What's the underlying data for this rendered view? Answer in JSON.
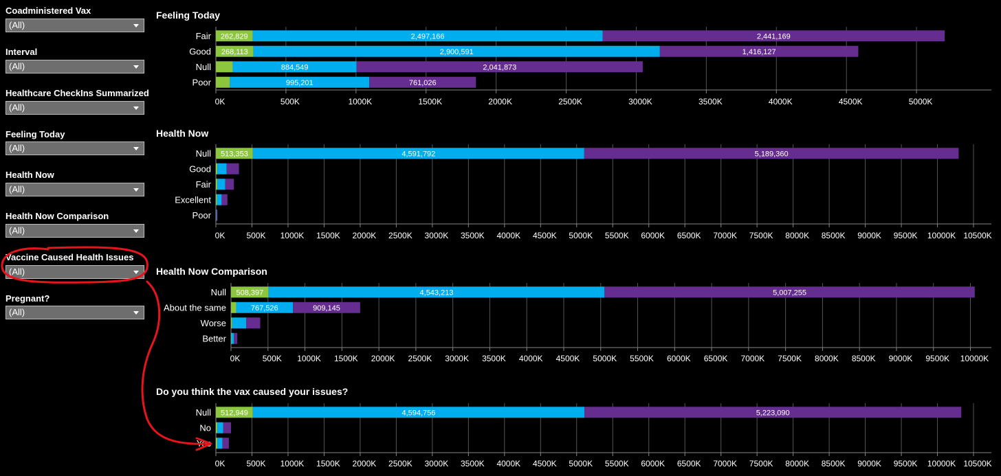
{
  "filters": [
    {
      "label": "Coadministered Vax",
      "value": "(All)"
    },
    {
      "label": "Interval",
      "value": "(All)"
    },
    {
      "label": "Healthcare CheckIns Summarized",
      "value": "(All)"
    },
    {
      "label": "Feeling Today",
      "value": "(All)"
    },
    {
      "label": "Health Now",
      "value": "(All)"
    },
    {
      "label": "Health Now Comparison",
      "value": "(All)"
    },
    {
      "label": "Vaccine Caused Health Issues",
      "value": "(All)"
    },
    {
      "label": "Pregnant?",
      "value": "(All)"
    }
  ],
  "colors": {
    "segment1": "#8cc63f",
    "segment2": "#00aeef",
    "segment3": "#662d91",
    "grid": "#555555",
    "annotation": "#e8141b"
  },
  "chart_data": [
    {
      "type": "bar",
      "stacked": true,
      "orientation": "horizontal",
      "title": "Feeling Today",
      "categories": [
        "Fair",
        "Good",
        "Null",
        "Poor"
      ],
      "series": [
        {
          "values": [
            262829,
            268113,
            120000,
            100000
          ],
          "labels": [
            "262,829",
            "268,113",
            "",
            ""
          ]
        },
        {
          "values": [
            2497166,
            2900591,
            884549,
            995201
          ],
          "labels": [
            "2,497,166",
            "2,900,591",
            "884,549",
            "995,201"
          ]
        },
        {
          "values": [
            2441169,
            1416127,
            2041873,
            761026
          ],
          "labels": [
            "2,441,169",
            "1,416,127",
            "2,041,873",
            "761,026"
          ]
        }
      ],
      "xlim": [
        0,
        5500000
      ],
      "xticks": [
        "0K",
        "500K",
        "1000K",
        "1500K",
        "2000K",
        "2500K",
        "3000K",
        "3500K",
        "4000K",
        "4500K",
        "5000K"
      ],
      "grid": true
    },
    {
      "type": "bar",
      "stacked": true,
      "orientation": "horizontal",
      "title": "Health Now",
      "categories": [
        "Null",
        "Good",
        "Fair",
        "Excellent",
        "Poor"
      ],
      "series": [
        {
          "values": [
            513353,
            20000,
            20000,
            15000,
            3000
          ],
          "labels": [
            "513,353",
            "",
            "",
            "",
            ""
          ]
        },
        {
          "values": [
            4591792,
            130000,
            110000,
            65000,
            5000
          ],
          "labels": [
            "4,591,792",
            "",
            "",
            "",
            ""
          ]
        },
        {
          "values": [
            5189360,
            170000,
            120000,
            80000,
            15000
          ],
          "labels": [
            "5,189,360",
            "",
            "",
            "",
            ""
          ]
        }
      ],
      "xlim": [
        0,
        10700000
      ],
      "xticks": [
        "0K",
        "500K",
        "1000K",
        "1500K",
        "2000K",
        "2500K",
        "3000K",
        "3500K",
        "4000K",
        "4500K",
        "5000K",
        "5500K",
        "6000K",
        "6500K",
        "7000K",
        "7500K",
        "8000K",
        "8500K",
        "9000K",
        "9500K",
        "10000K",
        "10500K"
      ],
      "grid": true
    },
    {
      "type": "bar",
      "stacked": true,
      "orientation": "horizontal",
      "title": "Health Now Comparison",
      "categories": [
        "Null",
        "About the same",
        "Worse",
        "Better"
      ],
      "series": [
        {
          "values": [
            508397,
            70000,
            15000,
            5000
          ],
          "labels": [
            "508,397",
            "",
            "",
            ""
          ]
        },
        {
          "values": [
            4543213,
            767526,
            190000,
            35000
          ],
          "labels": [
            "4,543,213",
            "767,526",
            "",
            ""
          ]
        },
        {
          "values": [
            5007255,
            909145,
            190000,
            45000
          ],
          "labels": [
            "5,007,255",
            "909,145",
            "",
            ""
          ]
        }
      ],
      "xlim": [
        0,
        10200000
      ],
      "xticks": [
        "0K",
        "500K",
        "1000K",
        "1500K",
        "2000K",
        "2500K",
        "3000K",
        "3500K",
        "4000K",
        "4500K",
        "5000K",
        "5500K",
        "6000K",
        "6500K",
        "7000K",
        "7500K",
        "8000K",
        "8500K",
        "9000K",
        "9500K",
        "10000K"
      ],
      "grid": true
    },
    {
      "type": "bar",
      "stacked": true,
      "orientation": "horizontal",
      "title": "Do you think the vax caused your issues?",
      "categories": [
        "Null",
        "No",
        "Yes"
      ],
      "series": [
        {
          "values": [
            512949,
            20000,
            20000
          ],
          "labels": [
            "512,949",
            "",
            ""
          ]
        },
        {
          "values": [
            4594756,
            80000,
            70000
          ],
          "labels": [
            "4,594,756",
            "",
            ""
          ]
        },
        {
          "values": [
            5223090,
            110000,
            90000
          ],
          "labels": [
            "5,223,090",
            "",
            ""
          ]
        }
      ],
      "xlim": [
        0,
        10700000
      ],
      "xticks": [
        "0K",
        "500K",
        "1000K",
        "1500K",
        "2000K",
        "2500K",
        "3000K",
        "3500K",
        "4000K",
        "4500K",
        "5000K",
        "5500K",
        "6000K",
        "6500K",
        "7000K",
        "7500K",
        "8000K",
        "8500K",
        "9000K",
        "9500K",
        "10000K",
        "10500K"
      ],
      "grid": true
    }
  ]
}
